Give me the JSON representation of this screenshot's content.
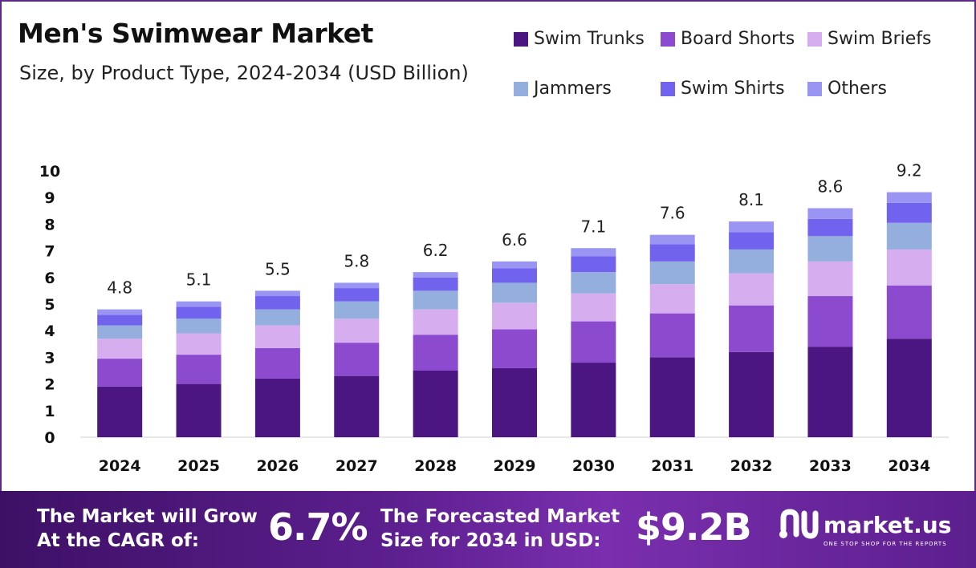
{
  "header": {
    "title": "Men's Swimwear Market",
    "subtitle": "Size, by Product Type, 2024-2034 (USD Billion)"
  },
  "colors": {
    "swim_trunks": "#4c1682",
    "board_shorts": "#8c4bcf",
    "swim_briefs": "#d6aef0",
    "jammers": "#94aedd",
    "swim_shirts": "#7263ee",
    "others": "#9a94f3",
    "footer_bg": "#5c1f8e"
  },
  "legend": [
    {
      "label": "Swim Trunks",
      "color": "#4c1682"
    },
    {
      "label": "Board Shorts",
      "color": "#8c4bcf"
    },
    {
      "label": "Swim Briefs",
      "color": "#d6aef0"
    },
    {
      "label": "Jammers",
      "color": "#94aedd"
    },
    {
      "label": "Swim Shirts",
      "color": "#7263ee"
    },
    {
      "label": "Others",
      "color": "#9a94f3"
    }
  ],
  "chart_data": {
    "type": "bar",
    "stacked": true,
    "title": "Men's Swimwear Market",
    "subtitle": "Size, by Product Type, 2024-2034 (USD Billion)",
    "xlabel": "",
    "ylabel": "",
    "ylim": [
      0,
      10
    ],
    "yticks": [
      "0",
      "1",
      "2",
      "3",
      "4",
      "5",
      "6",
      "7",
      "8",
      "9",
      "10"
    ],
    "categories": [
      "2024",
      "2025",
      "2026",
      "2027",
      "2028",
      "2029",
      "2030",
      "2031",
      "2032",
      "2033",
      "2034"
    ],
    "totals": [
      4.8,
      5.1,
      5.5,
      5.8,
      6.2,
      6.6,
      7.1,
      7.6,
      8.1,
      8.6,
      9.2
    ],
    "total_labels": [
      "4.8",
      "5.1",
      "5.5",
      "5.8",
      "6.2",
      "6.6",
      "7.1",
      "7.6",
      "8.1",
      "8.6",
      "9.2"
    ],
    "series": [
      {
        "name": "Swim Trunks",
        "values": [
          1.9,
          2.0,
          2.2,
          2.3,
          2.5,
          2.6,
          2.8,
          3.0,
          3.2,
          3.4,
          3.7
        ]
      },
      {
        "name": "Board Shorts",
        "values": [
          1.05,
          1.1,
          1.15,
          1.25,
          1.35,
          1.45,
          1.55,
          1.65,
          1.75,
          1.9,
          2.0
        ]
      },
      {
        "name": "Swim Briefs",
        "values": [
          0.75,
          0.8,
          0.85,
          0.9,
          0.95,
          1.0,
          1.05,
          1.1,
          1.2,
          1.3,
          1.35
        ]
      },
      {
        "name": "Jammers",
        "values": [
          0.5,
          0.55,
          0.6,
          0.65,
          0.7,
          0.75,
          0.8,
          0.85,
          0.9,
          0.95,
          1.0
        ]
      },
      {
        "name": "Swim Shirts",
        "values": [
          0.4,
          0.45,
          0.5,
          0.5,
          0.5,
          0.55,
          0.6,
          0.65,
          0.65,
          0.65,
          0.75
        ]
      },
      {
        "name": "Others",
        "values": [
          0.2,
          0.2,
          0.2,
          0.2,
          0.2,
          0.25,
          0.3,
          0.35,
          0.4,
          0.4,
          0.4
        ]
      }
    ]
  },
  "footer": {
    "cagr_text_line1": "The Market will Grow",
    "cagr_text_line2": "At the CAGR of:",
    "cagr_value": "6.7%",
    "forecast_text_line1": "The Forecasted Market",
    "forecast_text_line2": "Size for 2034 in USD:",
    "forecast_value": "$9.2B",
    "brand_name": "market.us",
    "brand_tagline": "ONE STOP SHOP FOR THE REPORTS"
  }
}
